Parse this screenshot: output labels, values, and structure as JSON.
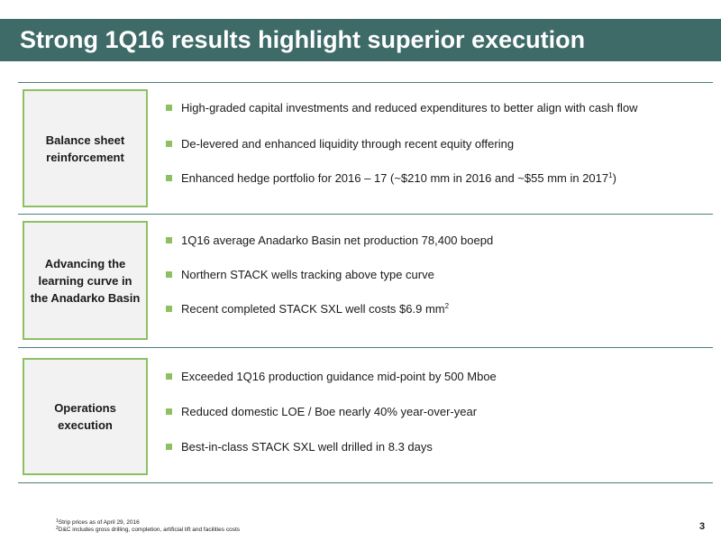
{
  "title": "Strong 1Q16 results highlight superior execution",
  "sections": [
    {
      "label": "Balance sheet reinforcement",
      "bullets": [
        {
          "text": "High-graded capital investments and reduced expenditures to better align with cash flow",
          "sup": ""
        },
        {
          "text": "De-levered and enhanced liquidity through recent equity offering",
          "sup": ""
        },
        {
          "text": "Enhanced hedge portfolio for 2016 – 17 (~$210 mm in 2016 and ~$55 mm in 2017",
          "sup": "1",
          "tail": ")"
        }
      ]
    },
    {
      "label": "Advancing the learning curve in the Anadarko Basin",
      "bullets": [
        {
          "text": "1Q16 average Anadarko Basin net production 78,400 boepd",
          "sup": ""
        },
        {
          "text": "Northern STACK wells tracking above type curve",
          "sup": ""
        },
        {
          "text": "Recent completed STACK SXL well costs $6.9 mm",
          "sup": "2"
        }
      ]
    },
    {
      "label": "Operations execution",
      "bullets": [
        {
          "text": "Exceeded 1Q16 production guidance mid-point by 500 Mboe",
          "sup": ""
        },
        {
          "text": "Reduced domestic LOE / Boe nearly 40% year-over-year",
          "sup": ""
        },
        {
          "text": "Best-in-class STACK SXL well drilled in 8.3 days",
          "sup": ""
        }
      ]
    }
  ],
  "footnotes": [
    {
      "mark": "1",
      "text": "Strip prices as of April 29, 2016"
    },
    {
      "mark": "2",
      "text": "D&C includes gross drilling, completion, artificial lift and facilities costs"
    }
  ],
  "page_number": "3",
  "colors": {
    "title_bar": "#3e6b68",
    "accent_green": "#8dc063",
    "rule": "#4f7e7b"
  }
}
